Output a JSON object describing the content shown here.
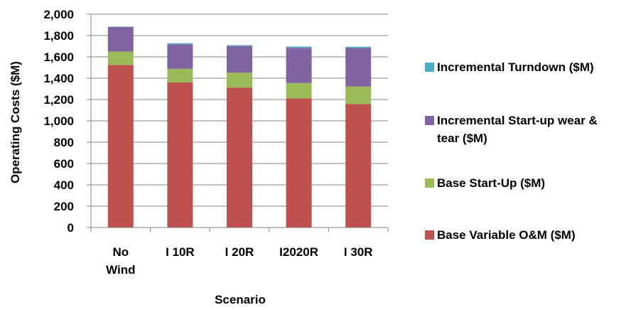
{
  "chart_data": {
    "type": "bar",
    "stacked": true,
    "categories": [
      "No Wind",
      "I 10R",
      "I 20R",
      "I2020R",
      "I 30R"
    ],
    "category_lines": [
      [
        "No",
        "Wind"
      ],
      [
        "I 10R"
      ],
      [
        "I 20R"
      ],
      [
        "I2020R"
      ],
      [
        "I 30R"
      ]
    ],
    "series": [
      {
        "name": "Base Variable O&M ($M)",
        "color": "#C0504D",
        "values": [
          1525,
          1360,
          1312,
          1210,
          1158
        ]
      },
      {
        "name": "Base Start-Up ($M)",
        "color": "#9BBB59",
        "values": [
          125,
          128,
          140,
          145,
          165
        ]
      },
      {
        "name": "Incremental Start-up wear & tear ($M)",
        "color": "#8064A2",
        "values": [
          230,
          230,
          250,
          330,
          360
        ]
      },
      {
        "name": "Incremental Turndown ($M)",
        "color": "#4BACC6",
        "values": [
          3,
          10,
          8,
          12,
          12
        ]
      }
    ],
    "xlabel": "Scenario",
    "ylabel": "Operating Costs ($M)",
    "ylim": [
      0,
      2000
    ],
    "yticks": [
      "0",
      "200",
      "400",
      "600",
      "800",
      "1,000",
      "1,200",
      "1,400",
      "1,600",
      "1,800",
      "2,000"
    ],
    "grid": true,
    "legend_position": "right"
  }
}
